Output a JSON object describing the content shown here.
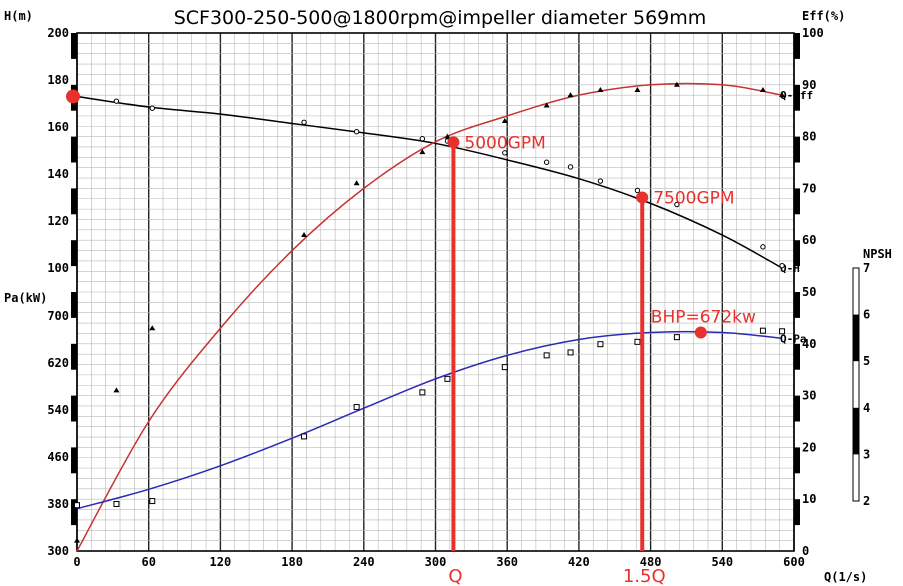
{
  "chart_data": {
    "type": "line",
    "title": "SCF300-250-500@1800rpm@impeller diameter 569mm",
    "xlabel": "Q(1/s)",
    "x_ticks": [
      0,
      60,
      120,
      180,
      240,
      300,
      360,
      420,
      480,
      540,
      600
    ],
    "xlim": [
      0,
      600
    ],
    "grid": true,
    "axes": {
      "head": {
        "label": "H(m)",
        "ticks": [
          100,
          120,
          140,
          160,
          180,
          200
        ],
        "range": [
          100,
          200
        ]
      },
      "power": {
        "label": "Pa(kW)",
        "ticks": [
          300,
          380,
          460,
          540,
          620,
          700
        ],
        "range": [
          300,
          700
        ]
      },
      "eff": {
        "label": "Eff(%)",
        "ticks": [
          0,
          10,
          20,
          30,
          40,
          50,
          60,
          70,
          80,
          90,
          100
        ],
        "range": [
          0,
          100
        ]
      },
      "npsh": {
        "label": "NPSH",
        "ticks": [
          2,
          3,
          4,
          5,
          6,
          7
        ],
        "range": [
          2,
          7
        ]
      }
    },
    "series": [
      {
        "name": "H",
        "axis": "head",
        "color": "#000000",
        "marker": "circle",
        "end_label": "Q-H",
        "x": [
          0,
          60,
          120,
          180,
          240,
          300,
          360,
          420,
          480,
          540,
          590
        ],
        "values": [
          173,
          168.5,
          165.5,
          161.5,
          157.5,
          153,
          146,
          138,
          127.5,
          114,
          100
        ]
      },
      {
        "name": "Eff",
        "axis": "eff",
        "color": "#c83232",
        "marker": "triangle",
        "end_label": "Q-Eff",
        "x": [
          0,
          60,
          120,
          180,
          240,
          300,
          360,
          420,
          480,
          540,
          590
        ],
        "values": [
          0,
          25,
          43,
          58,
          70,
          79,
          84,
          88,
          90,
          90,
          88
        ]
      },
      {
        "name": "Pa",
        "axis": "power",
        "color": "#2a2ab4",
        "marker": "square",
        "end_label": "Q-Pa",
        "x": [
          0,
          60,
          120,
          180,
          240,
          300,
          360,
          420,
          480,
          540,
          590
        ],
        "values": [
          372,
          405,
          445,
          492,
          543,
          593,
          633,
          660,
          672,
          672,
          662
        ]
      }
    ],
    "markers": {
      "H": {
        "x": [
          0,
          33,
          63,
          190,
          234,
          289,
          310,
          358,
          393,
          413,
          438,
          469,
          502,
          574,
          590
        ],
        "y": [
          173,
          171,
          168,
          162,
          158,
          155,
          154,
          149,
          145,
          143,
          137,
          133,
          127,
          109,
          101
        ]
      },
      "Eff": {
        "x": [
          0,
          33,
          63,
          190,
          234,
          289,
          310,
          358,
          393,
          413,
          438,
          469,
          502,
          574,
          590
        ],
        "y": [
          2,
          31,
          43,
          61,
          71,
          77,
          80,
          83,
          86,
          88,
          89,
          89,
          90,
          89,
          88
        ]
      },
      "Pa": {
        "x": [
          0,
          33,
          63,
          190,
          234,
          289,
          310,
          358,
          393,
          413,
          438,
          469,
          502,
          574,
          590
        ],
        "y": [
          378,
          380,
          385,
          495,
          545,
          570,
          593,
          613,
          633,
          638,
          652,
          656,
          664,
          675,
          674
        ]
      }
    },
    "annotations": [
      {
        "text": "5000GPM",
        "x": 315,
        "y": 153.5,
        "axis": "head"
      },
      {
        "text": "7500GPM",
        "x": 473,
        "y": 130,
        "axis": "head"
      },
      {
        "text": "BHP=672kw",
        "x": 522,
        "y": 672,
        "axis": "power"
      }
    ],
    "vlines": [
      {
        "label": "Q",
        "x": 315,
        "y_top": 153.5,
        "axis": "head"
      },
      {
        "label": "1.5Q",
        "x": 473,
        "y_top": 130,
        "axis": "head"
      }
    ],
    "shutoff_point": {
      "x": 0,
      "y": 173,
      "axis": "head"
    }
  }
}
